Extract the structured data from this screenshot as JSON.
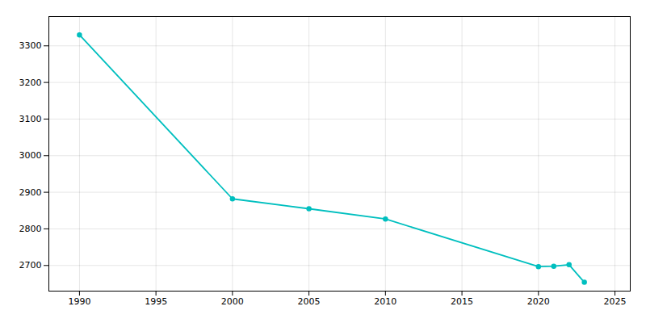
{
  "chart_data": {
    "type": "line",
    "x": [
      1990,
      2000,
      2005,
      2010,
      2020,
      2021,
      2022,
      2023
    ],
    "values": [
      3330,
      2882,
      2855,
      2827,
      2697,
      2698,
      2702,
      2654
    ],
    "color": "#00BFBF",
    "marker": "circle",
    "xlim": [
      1988,
      2026
    ],
    "xticks": [
      1990,
      1995,
      2000,
      2005,
      2010,
      2015,
      2020,
      2025
    ],
    "ylim": [
      2630,
      3380
    ],
    "yticks": [
      2700,
      2800,
      2900,
      3000,
      3100,
      3200,
      3300
    ],
    "grid": true
  }
}
